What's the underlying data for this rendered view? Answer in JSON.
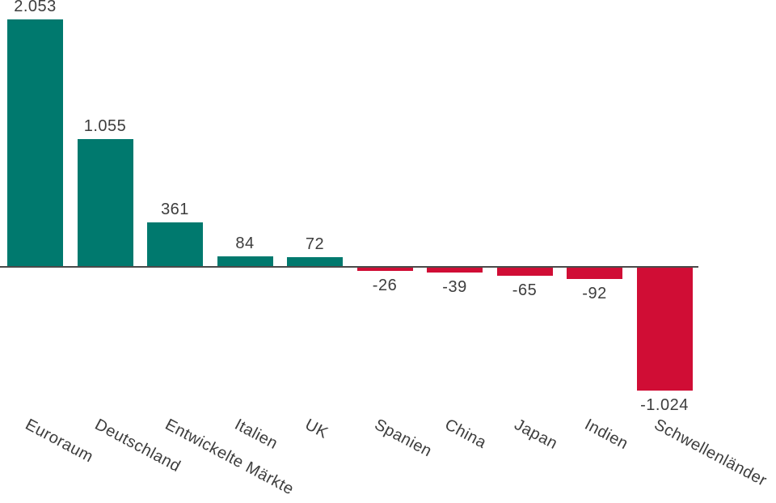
{
  "chart_data": {
    "type": "bar",
    "title": "",
    "xlabel": "",
    "ylabel": "",
    "grid": false,
    "legend": null,
    "categories": [
      "Euroraum",
      "Deutschland",
      "Entwickelte Märkte",
      "Italien",
      "UK",
      "Spanien",
      "China",
      "Japan",
      "Indien",
      "Schwellenländer"
    ],
    "values": [
      2053,
      1055,
      361,
      84,
      72,
      -26,
      -39,
      -65,
      -92,
      -1024
    ],
    "value_labels": [
      "2.053",
      "1.055",
      "361",
      "84",
      "72",
      "-26",
      "-39",
      "-65",
      "-92",
      "-1.024"
    ],
    "ylim": [
      -1100,
      2100
    ],
    "label_rotation_deg": 28,
    "colors": {
      "positive_bar": "#00796e",
      "negative_bar": "#d00d35",
      "axis_line": "#4a4a4a",
      "text": "#3d3d3d"
    }
  }
}
